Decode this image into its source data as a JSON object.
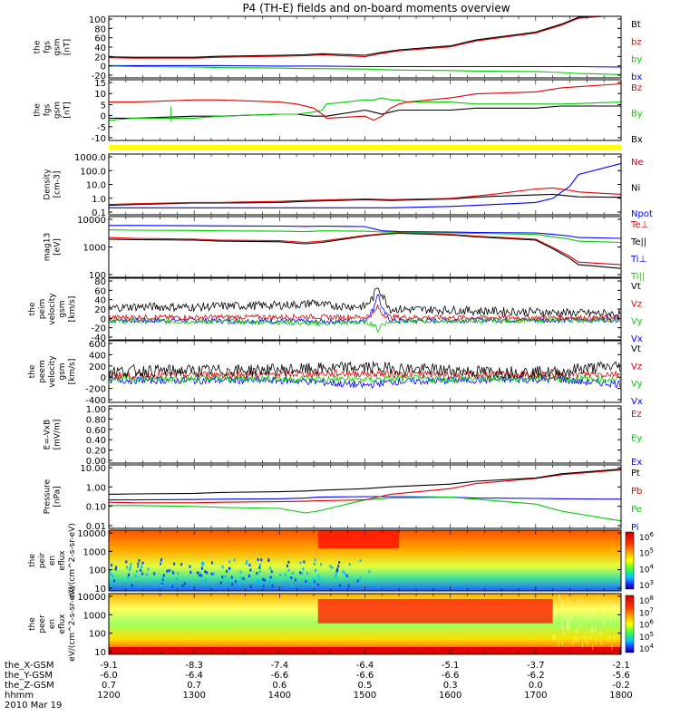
{
  "title": "P4 (TH-E) fields and on-board moments overview",
  "colors": {
    "black": "#000000",
    "red": "#e00000",
    "green": "#00cc00",
    "blue": "#0000ff",
    "yellow": "#ffff00"
  },
  "footer": {
    "rows": [
      {
        "label": "the_X-GSM",
        "values": [
          "-9.1",
          "-8.3",
          "-7.4",
          "-6.4",
          "-5.1",
          "-3.7",
          "-2.1"
        ]
      },
      {
        "label": "the_Y-GSM",
        "values": [
          "-6.0",
          "-6.4",
          "-6.6",
          "-6.6",
          "-6.6",
          "-6.2",
          "-5.6"
        ]
      },
      {
        "label": "the_Z-GSM",
        "values": [
          "0.7",
          "0.7",
          "0.6",
          "0.5",
          "0.3",
          "0.0",
          "-0.2"
        ]
      },
      {
        "label": "hhmm",
        "values": [
          "1200",
          "1300",
          "1400",
          "1500",
          "1600",
          "1700",
          "1800"
        ]
      }
    ],
    "date": "2010 Mar 19"
  },
  "chart_data": [
    {
      "type": "line",
      "ylabel": "the fgs gsm [nT]",
      "yticks": [
        "100",
        "80",
        "60",
        "40",
        "20",
        "0",
        "-20"
      ],
      "ylim": [
        -25,
        100
      ],
      "x": [
        1200,
        1230,
        1300,
        1330,
        1400,
        1430,
        1450,
        1500,
        1520,
        1540,
        1600,
        1630,
        1700,
        1730,
        1750,
        1800
      ],
      "series": [
        {
          "name": "Bt",
          "color": "black",
          "values": [
            18,
            17,
            17,
            19,
            21,
            22,
            24,
            21,
            27,
            32,
            40,
            52,
            68,
            84,
            98,
            105
          ]
        },
        {
          "name": "bz",
          "color": "red",
          "values": [
            16,
            15,
            15,
            17,
            19,
            20,
            22,
            18,
            25,
            30,
            38,
            50,
            66,
            82,
            96,
            103
          ]
        },
        {
          "name": "by",
          "color": "green",
          "values": [
            -1,
            -2,
            -3,
            -4,
            -5,
            -6,
            -6,
            -7,
            -8,
            -9,
            -10,
            -11,
            -12,
            -14,
            -16,
            -18
          ]
        },
        {
          "name": "bx",
          "color": "blue",
          "values": [
            0,
            0,
            0,
            0,
            -1,
            -1,
            -1,
            -2,
            -2,
            -2,
            -2,
            -2,
            -2,
            -2,
            -2,
            -3
          ]
        }
      ]
    },
    {
      "type": "line",
      "ylabel": "the fgs gsm [nT]",
      "yticks": [
        "15",
        "10",
        "5",
        "0",
        "-5",
        "-10"
      ],
      "ylim": [
        -14,
        16
      ],
      "x": [
        1200,
        1230,
        1300,
        1330,
        1400,
        1420,
        1440,
        1450,
        1455,
        1500,
        1510,
        1520,
        1530,
        1540,
        1550,
        1600,
        1630,
        1700,
        1730,
        1800
      ],
      "series": [
        {
          "name": "Bz",
          "color": "red",
          "values": [
            5,
            5,
            6,
            6,
            5,
            4,
            2,
            -1,
            -3,
            -2,
            -4,
            -2,
            2,
            4,
            5,
            7,
            9,
            10,
            12,
            14
          ]
        },
        {
          "name": "By",
          "color": "green",
          "values": [
            -4,
            -3,
            -3,
            -2,
            -1,
            -1,
            0,
            1,
            4,
            6,
            6,
            7,
            6,
            6,
            5,
            5,
            4,
            4,
            4,
            5
          ]
        },
        {
          "name": "Bx",
          "color": "black",
          "values": [
            -3,
            -3,
            -2,
            -2,
            -1,
            -1,
            -2,
            -2,
            -2,
            1,
            0,
            -1,
            0,
            1,
            1,
            1,
            2,
            2,
            3,
            3
          ]
        }
      ]
    },
    {
      "type": "area",
      "label": "yellow status bar"
    },
    {
      "type": "line",
      "log": true,
      "ylabel": "Density [cm-3]",
      "yticks": [
        "1000.0",
        "100.0",
        "10.0",
        "1.0",
        "0.1"
      ],
      "ylim": [
        0.06,
        2000
      ],
      "x": [
        1200,
        1230,
        1300,
        1330,
        1400,
        1430,
        1500,
        1530,
        1600,
        1630,
        1650,
        1700,
        1720,
        1740,
        1750,
        1800
      ],
      "series": [
        {
          "name": "Ne",
          "color": "red",
          "values": [
            0.35,
            0.4,
            0.5,
            0.5,
            0.6,
            0.7,
            0.9,
            0.8,
            1.0,
            1.5,
            2,
            5,
            6,
            4,
            3,
            2
          ]
        },
        {
          "name": "Ni",
          "color": "black",
          "values": [
            0.3,
            0.35,
            0.45,
            0.45,
            0.5,
            0.6,
            0.8,
            0.7,
            0.9,
            1.2,
            1.4,
            1.8,
            2.0,
            1.5,
            1.3,
            1.2
          ]
        },
        {
          "name": "Npot",
          "color": "blue",
          "values": [
            0.2,
            0.2,
            0.2,
            0.2,
            0.2,
            0.2,
            0.2,
            0.2,
            0.25,
            0.3,
            0.35,
            0.5,
            1,
            8,
            60,
            400
          ]
        }
      ]
    },
    {
      "type": "line",
      "log": true,
      "ylabel": "mag13 [eV]",
      "yticks": [
        "10000",
        "1000",
        "100"
      ],
      "ylim": [
        15,
        12000
      ],
      "x": [
        1200,
        1230,
        1300,
        1330,
        1400,
        1430,
        1450,
        1500,
        1520,
        1540,
        1600,
        1630,
        1700,
        1720,
        1740,
        1750,
        1800
      ],
      "series": [
        {
          "name": "Te⊥",
          "color": "red",
          "values": [
            1200,
            1100,
            1000,
            900,
            850,
            700,
            800,
            1500,
            1800,
            2000,
            1700,
            1400,
            1000,
            400,
            150,
            80,
            60
          ]
        },
        {
          "name": "Te||",
          "color": "black",
          "values": [
            1000,
            950,
            900,
            800,
            750,
            600,
            700,
            1400,
            1700,
            1900,
            1600,
            1300,
            900,
            350,
            120,
            60,
            40
          ]
        },
        {
          "name": "Ti⊥",
          "color": "blue",
          "values": [
            4500,
            4500,
            4400,
            4300,
            4200,
            4100,
            4200,
            4000,
            2500,
            2300,
            2200,
            2100,
            2000,
            1700,
            1400,
            1200,
            1100
          ]
        },
        {
          "name": "Ti||",
          "color": "green",
          "values": [
            2800,
            2700,
            2600,
            2500,
            2400,
            2300,
            2500,
            2400,
            2200,
            2100,
            2000,
            1900,
            1700,
            1300,
            1000,
            800,
            700
          ]
        }
      ]
    },
    {
      "type": "line",
      "ylabel": "the peim velocity gsm [km/s]",
      "yticks": [
        "80",
        "60",
        "40",
        "20",
        "0",
        "-20",
        "-40"
      ],
      "ylim": [
        -45,
        85
      ],
      "x": [
        1200,
        1230,
        1300,
        1330,
        1400,
        1430,
        1440,
        1450,
        1500,
        1510,
        1515,
        1520,
        1530,
        1600,
        1630,
        1700,
        1730,
        1800
      ],
      "series": [
        {
          "name": "Vt",
          "color": "black",
          "values": [
            22,
            25,
            24,
            26,
            28,
            30,
            35,
            28,
            25,
            45,
            70,
            50,
            20,
            18,
            16,
            14,
            12,
            10
          ]
        },
        {
          "name": "Vz",
          "color": "red",
          "values": [
            2,
            3,
            2,
            3,
            3,
            4,
            4,
            3,
            3,
            10,
            25,
            10,
            3,
            2,
            2,
            2,
            2,
            1
          ]
        },
        {
          "name": "Vy",
          "color": "green",
          "values": [
            -5,
            -6,
            -6,
            -7,
            -8,
            -10,
            -12,
            -10,
            -8,
            -12,
            -25,
            -12,
            -6,
            -5,
            -5,
            -4,
            -4,
            -3
          ]
        },
        {
          "name": "Vx",
          "color": "blue",
          "values": [
            -3,
            -4,
            -4,
            -5,
            -5,
            -6,
            -8,
            -6,
            -5,
            20,
            55,
            20,
            -5,
            -4,
            -3,
            -3,
            -3,
            -2
          ]
        }
      ]
    },
    {
      "type": "line",
      "ylabel": "the peem velocity gsm [km/s]",
      "yticks": [
        "600",
        "400",
        "200",
        "0",
        "-200",
        "-400"
      ],
      "ylim": [
        -450,
        650
      ],
      "x": [
        1200,
        1230,
        1300,
        1330,
        1400,
        1430,
        1500,
        1530,
        1600,
        1630,
        1700,
        1730,
        1750,
        1800
      ],
      "series": [
        {
          "name": "Vt",
          "color": "black",
          "values": [
            100,
            110,
            115,
            120,
            130,
            140,
            180,
            160,
            120,
            100,
            90,
            80,
            150,
            200
          ]
        },
        {
          "name": "Vz",
          "color": "red",
          "values": [
            40,
            35,
            40,
            45,
            50,
            60,
            70,
            60,
            50,
            45,
            40,
            35,
            50,
            60
          ]
        },
        {
          "name": "Vy",
          "color": "green",
          "values": [
            -20,
            -25,
            -30,
            -25,
            -30,
            -35,
            -40,
            -35,
            -30,
            -25,
            -20,
            -20,
            -30,
            -40
          ]
        },
        {
          "name": "Vx",
          "color": "blue",
          "values": [
            -50,
            -55,
            -60,
            -55,
            -60,
            -70,
            -150,
            -80,
            -60,
            -50,
            -40,
            -40,
            -80,
            -120
          ]
        }
      ]
    },
    {
      "type": "line",
      "ylabel": "E=-VxB [mV/m]",
      "yticks": [
        "1.00",
        "0.80",
        "0.60",
        "0.40",
        "0.20",
        "0.00"
      ],
      "ylim": [
        0,
        1
      ],
      "series": [
        {
          "name": "Ez",
          "color": "red",
          "values": []
        },
        {
          "name": "Ey",
          "color": "green",
          "values": []
        },
        {
          "name": "Ex",
          "color": "blue",
          "values": []
        }
      ]
    },
    {
      "type": "line",
      "log": true,
      "ylabel": "Pressure [nPa]",
      "yticks": [
        "10.00",
        "1.00",
        "0.10",
        "0.01"
      ],
      "ylim": [
        0.006,
        15
      ],
      "x": [
        1200,
        1230,
        1300,
        1330,
        1400,
        1430,
        1445,
        1500,
        1530,
        1600,
        1630,
        1700,
        1730,
        1800
      ],
      "series": [
        {
          "name": "Pt",
          "color": "black",
          "values": [
            0.4,
            0.42,
            0.45,
            0.5,
            0.55,
            0.6,
            0.65,
            0.8,
            1.0,
            1.4,
            2,
            3,
            5,
            9
          ]
        },
        {
          "name": "Pb",
          "color": "red",
          "values": [
            0.15,
            0.14,
            0.14,
            0.15,
            0.16,
            0.17,
            0.18,
            0.2,
            0.4,
            0.8,
            1.5,
            2.8,
            4.5,
            8
          ]
        },
        {
          "name": "Pe",
          "color": "green",
          "values": [
            0.1,
            0.1,
            0.09,
            0.08,
            0.07,
            0.04,
            0.05,
            0.2,
            0.25,
            0.28,
            0.22,
            0.12,
            0.05,
            0.015
          ]
        },
        {
          "name": "Pi",
          "color": "blue",
          "values": [
            0.2,
            0.2,
            0.21,
            0.22,
            0.23,
            0.25,
            0.28,
            0.3,
            0.3,
            0.28,
            0.25,
            0.24,
            0.23,
            0.22
          ]
        }
      ]
    },
    {
      "type": "heatmap",
      "ylabel": "the peir en eflux eV/(cm^2-s-sr-eV)",
      "yticks": [
        "10000",
        "1000",
        "100",
        "10"
      ],
      "colorbar": [
        "10^6",
        "10^5",
        "10^4",
        "10^3"
      ]
    },
    {
      "type": "heatmap",
      "ylabel": "the peer en eflux eV/(cm^2-s-sr-eV)",
      "yticks": [
        "10000",
        "1000",
        "100",
        "10"
      ],
      "colorbar": [
        "10^8",
        "10^7",
        "10^6",
        "10^5",
        "10^4"
      ]
    }
  ]
}
